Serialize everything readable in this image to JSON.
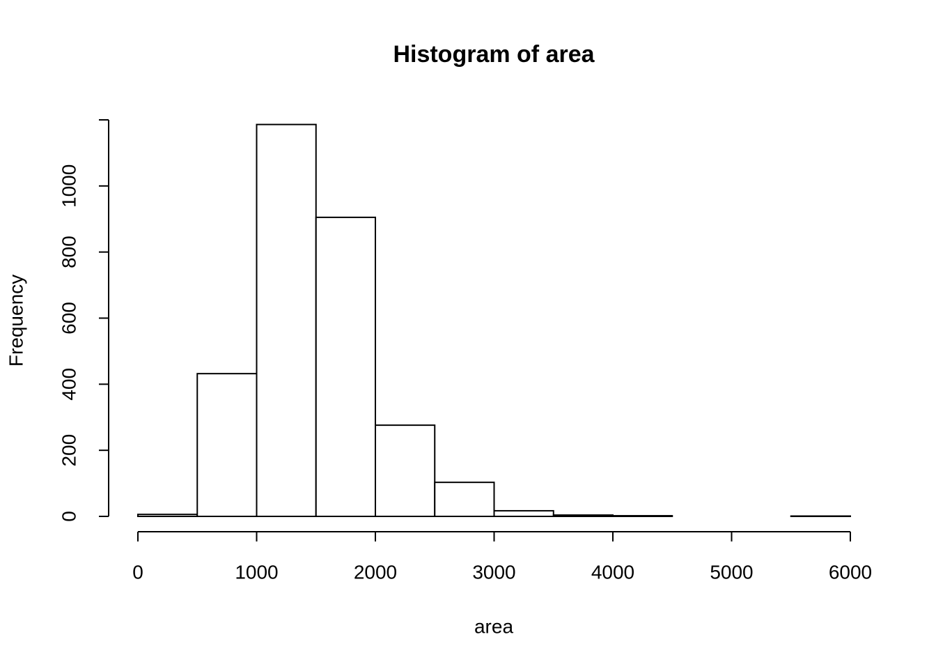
{
  "chart_data": {
    "type": "histogram",
    "title": "Histogram of area",
    "x_label": "area",
    "y_label": "Frequency",
    "bins": [
      0,
      500,
      1000,
      1500,
      2000,
      2500,
      3000,
      3500,
      4000,
      4500,
      5000,
      5500,
      6000
    ],
    "values": [
      6,
      432,
      1186,
      905,
      276,
      103,
      17,
      4,
      2,
      0,
      0,
      1
    ],
    "color": "#ffffff",
    "xlim": [
      0,
      6000
    ],
    "xticks": [
      0,
      1000,
      2000,
      3000,
      4000,
      5000,
      6000
    ],
    "ylim": [
      0,
      1200
    ],
    "yticks": [
      0,
      200,
      400,
      600,
      800,
      1000
    ]
  }
}
